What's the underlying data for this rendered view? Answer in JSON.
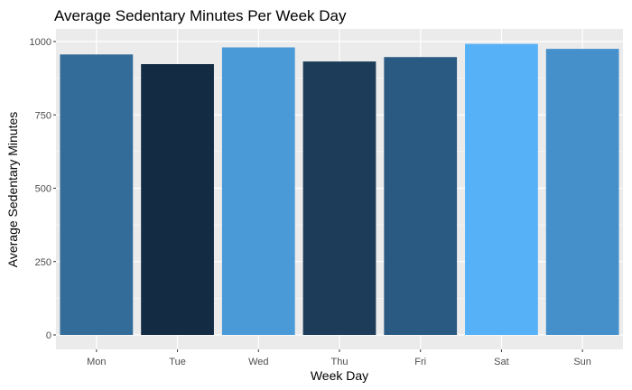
{
  "chart_data": {
    "type": "bar",
    "title": "Average Sedentary Minutes Per Week Day",
    "xlabel": "Week Day",
    "ylabel": "Average Sedentary Minutes",
    "categories": [
      "Mon",
      "Tue",
      "Wed",
      "Thu",
      "Fri",
      "Sat",
      "Sun"
    ],
    "values": [
      956,
      923,
      980,
      932,
      947,
      992,
      975
    ],
    "ylim": [
      0,
      1050
    ],
    "yticks": [
      0,
      250,
      500,
      750,
      1000
    ],
    "ytick_labels": [
      "0",
      "250",
      "500",
      "750",
      "1000"
    ],
    "grid": true,
    "legend": "none",
    "colors": {
      "panel_background": "#EBEBEB",
      "grid_line": "#FFFFFF",
      "bar_fill_scale": [
        "#132B43",
        "#56B1F7"
      ]
    }
  }
}
